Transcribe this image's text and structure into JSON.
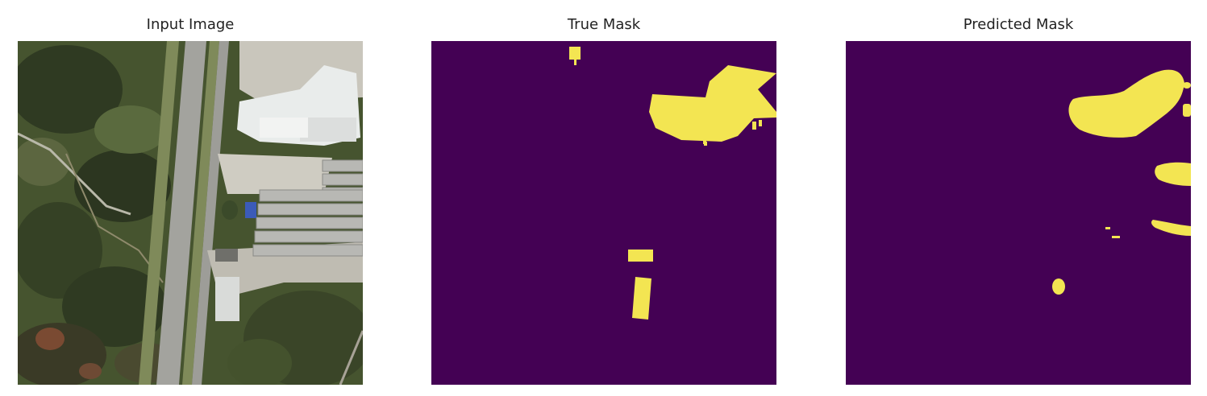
{
  "panels": [
    {
      "title": "Input Image"
    },
    {
      "title": "True Mask"
    },
    {
      "title": "Predicted Mask"
    }
  ],
  "colors": {
    "mask_background": "#440154",
    "mask_foreground": "#f3e552",
    "vegetation_dark": "#2f3a22",
    "vegetation_mid": "#55623c",
    "roof": "#e9eceb",
    "pavement": "#c9c6bc",
    "road": "#9d9d98"
  }
}
